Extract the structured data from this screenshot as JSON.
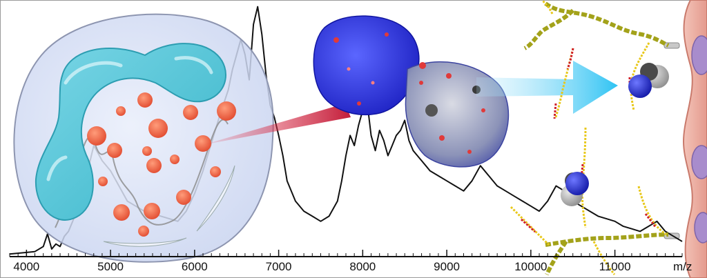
{
  "axis": {
    "ticks": [
      {
        "value": 4000,
        "label": "4000"
      },
      {
        "value": 5000,
        "label": "5000"
      },
      {
        "value": 6000,
        "label": "6000"
      },
      {
        "value": 7000,
        "label": "7000"
      },
      {
        "value": 8000,
        "label": "8000"
      },
      {
        "value": 9000,
        "label": "9000"
      },
      {
        "value": 10000,
        "label": "10000"
      },
      {
        "value": 11000,
        "label": "11000"
      }
    ],
    "unit": "m/z",
    "range": [
      3800,
      11800
    ]
  },
  "chart_data": {
    "type": "line",
    "xlabel": "m/z",
    "ylabel": "",
    "xlim": [
      3800,
      11800
    ],
    "ylim": [
      0,
      100
    ],
    "grid": false,
    "x": [
      3800,
      4100,
      4200,
      4250,
      4300,
      4350,
      4400,
      4450,
      4500,
      4600,
      4700,
      4800,
      4900,
      5000,
      5100,
      5200,
      5300,
      5400,
      5500,
      5600,
      5700,
      5800,
      5900,
      6000,
      6100,
      6200,
      6300,
      6400,
      6450,
      6500,
      6550,
      6600,
      6650,
      6700,
      6750,
      6800,
      6850,
      6900,
      6950,
      7000,
      7050,
      7100,
      7200,
      7300,
      7400,
      7500,
      7600,
      7700,
      7750,
      7800,
      7850,
      7900,
      7950,
      8000,
      8050,
      8100,
      8150,
      8200,
      8250,
      8300,
      8350,
      8400,
      8450,
      8500,
      8550,
      8600,
      8650,
      8700,
      8750,
      8800,
      8900,
      9000,
      9100,
      9200,
      9300,
      9400,
      9500,
      9600,
      9700,
      9800,
      9900,
      10000,
      10100,
      10200,
      10300,
      10400,
      10500,
      10600,
      10700,
      10800,
      10900,
      11000,
      11100,
      11200,
      11300,
      11400,
      11500,
      11600,
      11700,
      11800
    ],
    "y": [
      1,
      2,
      4,
      9,
      3,
      5,
      4,
      8,
      10,
      18,
      30,
      44,
      38,
      34,
      28,
      22,
      20,
      18,
      17,
      16,
      15,
      14,
      18,
      25,
      34,
      45,
      56,
      66,
      74,
      80,
      86,
      80,
      70,
      92,
      99,
      88,
      72,
      60,
      55,
      48,
      40,
      30,
      22,
      18,
      16,
      14,
      16,
      22,
      30,
      40,
      48,
      44,
      52,
      58,
      62,
      48,
      42,
      50,
      46,
      40,
      44,
      48,
      50,
      54,
      46,
      42,
      40,
      38,
      36,
      34,
      32,
      30,
      28,
      26,
      30,
      36,
      32,
      28,
      26,
      24,
      22,
      20,
      18,
      22,
      28,
      26,
      22,
      20,
      18,
      16,
      15,
      14,
      12,
      11,
      10,
      12,
      14,
      10,
      8,
      6
    ]
  }
}
